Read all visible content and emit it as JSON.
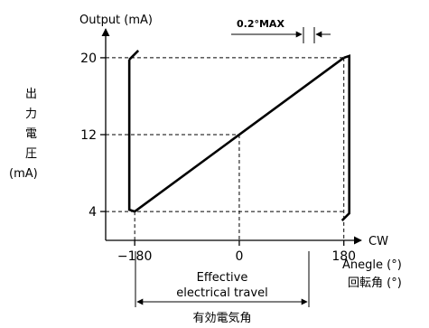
{
  "chart_data": {
    "type": "line",
    "title": "",
    "ylabel": "Output (mA)",
    "ylabel_side": [
      "出",
      "力",
      "電",
      "圧",
      "(mA)"
    ],
    "xlabel": "Anegle (°)",
    "xlabel_jp": "回転角 (°)",
    "x_arrow_label": "CW",
    "xticks": [
      -180,
      0,
      180
    ],
    "yticks": [
      4,
      12,
      20
    ],
    "ytick_labels": [
      "4",
      "12",
      "20"
    ],
    "xlim": [
      -230,
      210
    ],
    "ylim": [
      1,
      23
    ],
    "series": [
      {
        "points": [
          [
            -180,
            4
          ],
          [
            180,
            20
          ]
        ]
      }
    ],
    "annotations": {
      "max_label": "0.2°MAX",
      "travel_label_1": "Effective",
      "travel_label_2": "electrical travel",
      "travel_label_jp": "有効電気角"
    }
  }
}
